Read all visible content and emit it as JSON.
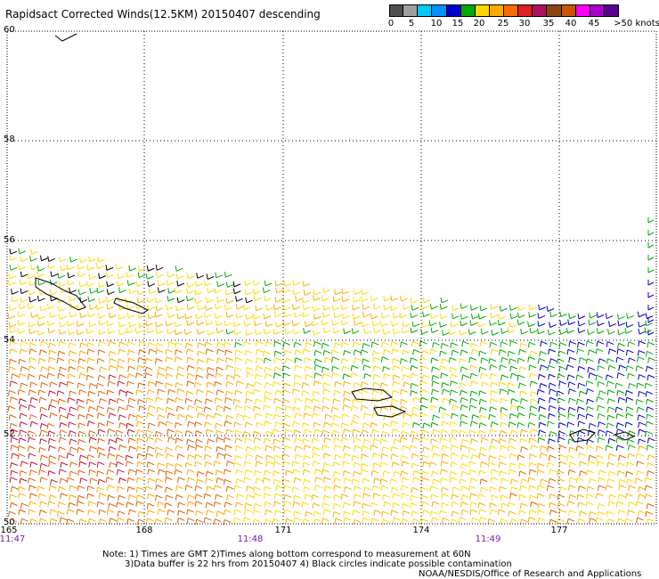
{
  "title": "Rapidsact Corrected Winds(12.5KM) 20150407 descending",
  "legend": {
    "colors": [
      "#505050",
      "#a0a0a0",
      "#00c8ff",
      "#0090ff",
      "#0000cc",
      "#00aa00",
      "#ffd700",
      "#ffaa00",
      "#ff6a00",
      "#e02020",
      "#b01060",
      "#8b4513",
      "#cc5500",
      "#ff00ff",
      "#aa00cc",
      "#5a0090"
    ],
    "tick_labels": [
      "0",
      "5",
      "10",
      "15",
      "20",
      "25",
      "30",
      "35",
      "40",
      "45",
      ">50 knots"
    ]
  },
  "map": {
    "lat_labels": [
      "60",
      "58",
      "56",
      "54",
      "52",
      "50"
    ],
    "lon_labels": [
      "165",
      "168",
      "171",
      "174",
      "177"
    ],
    "time_labels": [
      "11:47",
      "11:48",
      "11:49"
    ],
    "wind_colors": {
      "calm": "#00aa00",
      "light": "#0000cc",
      "moderate": "#ffd700",
      "fresh": "#ffaa00",
      "strong": "#e06000",
      "gale": "#c01030",
      "contaminated": "#000000"
    }
  },
  "notes": {
    "line1": "Note: 1) Times are GMT 2)Times along bottom correspond to measurement at 60N",
    "line2": "3)Data buffer is 22 hrs from 20150407 4) Black circles indicate possible contamination",
    "line3": "NOAA/NESDIS/Office of Research and Applications"
  }
}
